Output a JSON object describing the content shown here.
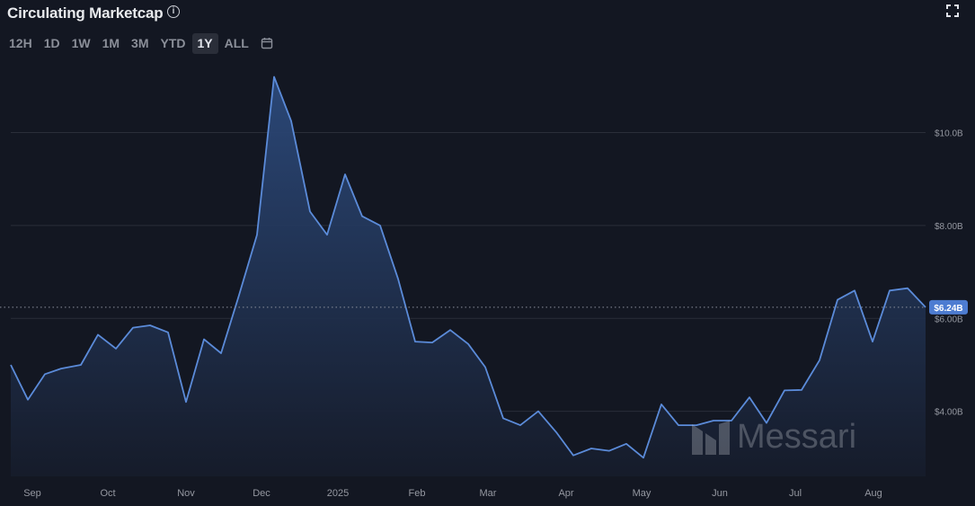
{
  "header": {
    "title": "Circulating Marketcap",
    "info_icon": "info-icon",
    "fullscreen_icon": "fullscreen-icon"
  },
  "time_ranges": [
    {
      "label": "12H",
      "active": false
    },
    {
      "label": "1D",
      "active": false
    },
    {
      "label": "1W",
      "active": false
    },
    {
      "label": "1M",
      "active": false
    },
    {
      "label": "3M",
      "active": false
    },
    {
      "label": "YTD",
      "active": false
    },
    {
      "label": "1Y",
      "active": true
    },
    {
      "label": "ALL",
      "active": false
    }
  ],
  "calendar_icon": "calendar-icon",
  "watermark": {
    "text": "Messari"
  },
  "colors": {
    "background": "#131722",
    "line": "#5b8bd9",
    "area_top": "#2c4a7c",
    "area_bottom": "#161c2b",
    "grid": "#2a2e39",
    "axis_text": "#9598a1",
    "badge": "#4d7cd1"
  },
  "chart_data": {
    "type": "area",
    "title": "Circulating Marketcap",
    "xlabel": "",
    "ylabel": "",
    "ylim": [
      2.6,
      11.5
    ],
    "y_ticks": [
      {
        "value": 4,
        "label": "$4.00B"
      },
      {
        "value": 6,
        "label": "$6.00B"
      },
      {
        "value": 8,
        "label": "$8.00B"
      },
      {
        "value": 10,
        "label": "$10.0B"
      }
    ],
    "x_ticks": [
      {
        "value": 36,
        "label": "Sep"
      },
      {
        "value": 120,
        "label": "Oct"
      },
      {
        "value": 207,
        "label": "Nov"
      },
      {
        "value": 291,
        "label": "Dec"
      },
      {
        "value": 376,
        "label": "2025"
      },
      {
        "value": 464,
        "label": "Feb"
      },
      {
        "value": 543,
        "label": "Mar"
      },
      {
        "value": 630,
        "label": "Apr"
      },
      {
        "value": 714,
        "label": "May"
      },
      {
        "value": 801,
        "label": "Jun"
      },
      {
        "value": 885,
        "label": "Jul"
      },
      {
        "value": 972,
        "label": "Aug"
      }
    ],
    "xlim": [
      12,
      1030
    ],
    "grid": true,
    "current_value": {
      "value": 6.24,
      "label": "$6.24B"
    },
    "series": [
      {
        "x": [
          12,
          31,
          50,
          68,
          90,
          109,
          129,
          148,
          167,
          187,
          207,
          227,
          246,
          266,
          286,
          305,
          324,
          345,
          364,
          384,
          403,
          423,
          443,
          462,
          481,
          501,
          521,
          540,
          560,
          579,
          599,
          619,
          638,
          658,
          678,
          697,
          716,
          736,
          755,
          775,
          794,
          814,
          834,
          853,
          873,
          892,
          912,
          932,
          951,
          971,
          990,
          1010,
          1030
        ],
        "values": [
          5.0,
          4.25,
          4.8,
          4.92,
          5.0,
          5.65,
          5.35,
          5.8,
          5.85,
          5.7,
          4.2,
          5.55,
          5.25,
          6.5,
          7.8,
          11.2,
          10.25,
          8.3,
          7.8,
          9.1,
          8.2,
          8.0,
          6.85,
          5.5,
          5.48,
          5.75,
          5.45,
          4.95,
          3.85,
          3.7,
          4.0,
          3.55,
          3.05,
          3.2,
          3.15,
          3.3,
          3.0,
          4.15,
          3.7,
          3.7,
          3.8,
          3.8,
          4.3,
          3.75,
          4.45,
          4.46,
          5.1,
          6.4,
          6.6,
          5.5,
          6.6,
          6.65,
          6.24
        ]
      }
    ]
  }
}
